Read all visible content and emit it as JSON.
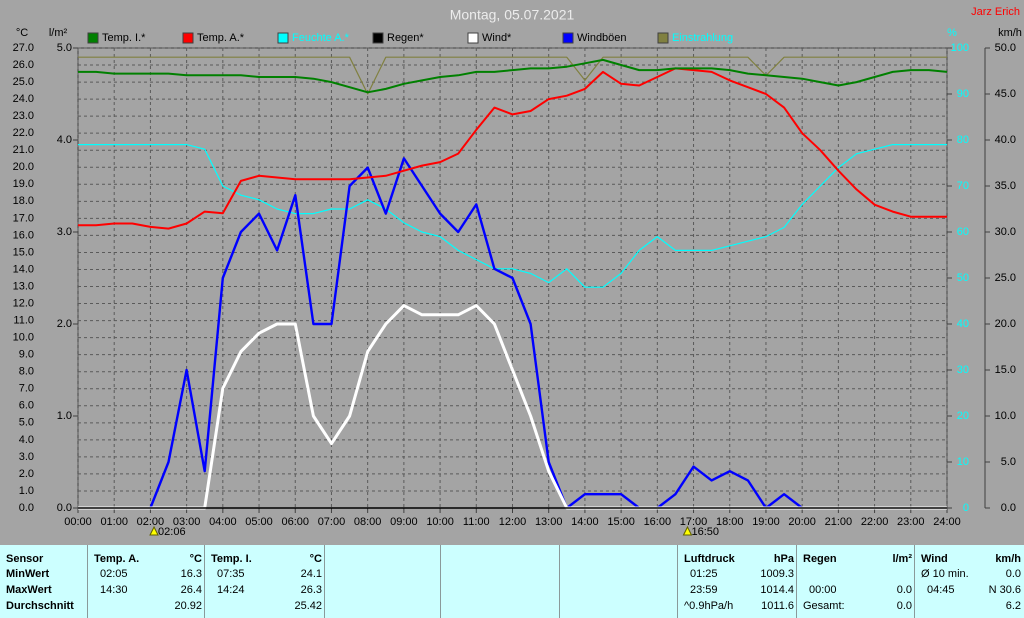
{
  "chart_data": {
    "type": "line",
    "title": "Montag, 05.07.2021",
    "corner_text": "Jarz Erich",
    "ylabel": "°C",
    "y2label": "l/m²",
    "y3label": "%",
    "y4label": "km/h",
    "x": [
      0,
      0.5,
      1,
      1.5,
      2,
      2.5,
      3,
      3.5,
      4,
      4.5,
      5,
      5.5,
      6,
      6.5,
      7,
      7.5,
      8,
      8.5,
      9,
      9.5,
      10,
      10.5,
      11,
      11.5,
      12,
      12.5,
      13,
      13.5,
      14,
      14.5,
      15,
      15.5,
      16,
      16.5,
      17,
      17.5,
      18,
      18.5,
      19,
      19.5,
      20,
      20.5,
      21,
      21.5,
      22,
      22.5,
      23,
      23.5,
      24
    ],
    "xlim": [
      0,
      24
    ],
    "xticks": [
      {
        "value": 0,
        "label": "00:00"
      },
      {
        "value": 1,
        "label": "01:00"
      },
      {
        "value": 2,
        "label": "02:00"
      },
      {
        "value": 3,
        "label": "03:00"
      },
      {
        "value": 4,
        "label": "04:00"
      },
      {
        "value": 5,
        "label": "05:00"
      },
      {
        "value": 6,
        "label": "06:00"
      },
      {
        "value": 7,
        "label": "07:00"
      },
      {
        "value": 8,
        "label": "08:00"
      },
      {
        "value": 9,
        "label": "09:00"
      },
      {
        "value": 10,
        "label": "10:00"
      },
      {
        "value": 11,
        "label": "11:00"
      },
      {
        "value": 12,
        "label": "12:00"
      },
      {
        "value": 13,
        "label": "13:00"
      },
      {
        "value": 14,
        "label": "14:00"
      },
      {
        "value": 15,
        "label": "15:00"
      },
      {
        "value": 16,
        "label": "16:00"
      },
      {
        "value": 17,
        "label": "17:00"
      },
      {
        "value": 18,
        "label": "18:00"
      },
      {
        "value": 19,
        "label": "19:00"
      },
      {
        "value": 20,
        "label": "20:00"
      },
      {
        "value": 21,
        "label": "21:00"
      },
      {
        "value": 22,
        "label": "22:00"
      },
      {
        "value": 23,
        "label": "23:00"
      },
      {
        "value": 24,
        "label": "24:00"
      }
    ],
    "ylim": [
      0,
      27
    ],
    "yticks": [
      {
        "value": 0,
        "label": "0.0"
      },
      {
        "value": 1,
        "label": "1.0"
      },
      {
        "value": 2,
        "label": "2.0"
      },
      {
        "value": 3,
        "label": "3.0"
      },
      {
        "value": 4,
        "label": "4.0"
      },
      {
        "value": 5,
        "label": "5.0"
      },
      {
        "value": 6,
        "label": "6.0"
      },
      {
        "value": 7,
        "label": "7.0"
      },
      {
        "value": 8,
        "label": "8.0"
      },
      {
        "value": 9,
        "label": "9.0"
      },
      {
        "value": 10,
        "label": "10.0"
      },
      {
        "value": 11,
        "label": "11.0"
      },
      {
        "value": 12,
        "label": "12.0"
      },
      {
        "value": 13,
        "label": "13.0"
      },
      {
        "value": 14,
        "label": "14.0"
      },
      {
        "value": 15,
        "label": "15.0"
      },
      {
        "value": 16,
        "label": "16.0"
      },
      {
        "value": 17,
        "label": "17.0"
      },
      {
        "value": 18,
        "label": "18.0"
      },
      {
        "value": 19,
        "label": "19.0"
      },
      {
        "value": 20,
        "label": "20.0"
      },
      {
        "value": 21,
        "label": "21.0"
      },
      {
        "value": 22,
        "label": "22.0"
      },
      {
        "value": 23,
        "label": "23.0"
      },
      {
        "value": 24,
        "label": "24.0"
      },
      {
        "value": 25,
        "label": "25.0"
      },
      {
        "value": 26,
        "label": "26.0"
      },
      {
        "value": 27,
        "label": "27.0"
      }
    ],
    "y2lim": [
      0,
      5
    ],
    "y2ticks": [
      {
        "value": 0,
        "label": "0.0"
      },
      {
        "value": 1,
        "label": "1.0"
      },
      {
        "value": 2,
        "label": "2.0"
      },
      {
        "value": 3,
        "label": "3.0"
      },
      {
        "value": 4,
        "label": "4.0"
      },
      {
        "value": 5,
        "label": "5.0"
      }
    ],
    "y3lim": [
      0,
      100
    ],
    "y3ticks": [
      0,
      10,
      20,
      30,
      40,
      50,
      60,
      70,
      80,
      90,
      100
    ],
    "y4lim": [
      0,
      50
    ],
    "y4ticks": [
      {
        "value": 0,
        "label": "0.0"
      },
      {
        "value": 5,
        "label": "5.0"
      },
      {
        "value": 10,
        "label": "10.0"
      },
      {
        "value": 15,
        "label": "15.0"
      },
      {
        "value": 20,
        "label": "20.0"
      },
      {
        "value": 25,
        "label": "25.0"
      },
      {
        "value": 30,
        "label": "30.0"
      },
      {
        "value": 35,
        "label": "35.0"
      },
      {
        "value": 40,
        "label": "40.0"
      },
      {
        "value": 45,
        "label": "45.0"
      },
      {
        "value": 50,
        "label": "50.0"
      }
    ],
    "grid": true,
    "series": [
      {
        "name": "Temp. I.*",
        "color": "#008000",
        "axis": "y",
        "values": [
          25.6,
          25.6,
          25.5,
          25.5,
          25.5,
          25.5,
          25.4,
          25.4,
          25.4,
          25.4,
          25.3,
          25.3,
          25.3,
          25.2,
          25.0,
          24.7,
          24.4,
          24.6,
          24.9,
          25.1,
          25.3,
          25.4,
          25.6,
          25.6,
          25.7,
          25.8,
          25.8,
          25.9,
          26.1,
          26.3,
          26.0,
          25.7,
          25.7,
          25.8,
          25.8,
          25.8,
          25.7,
          25.5,
          25.4,
          25.3,
          25.2,
          25.0,
          24.8,
          25.0,
          25.3,
          25.6,
          25.7,
          25.7,
          25.6
        ]
      },
      {
        "name": "Temp. A.*",
        "color": "#ff0000",
        "axis": "y",
        "values": [
          16.6,
          16.6,
          16.7,
          16.7,
          16.5,
          16.4,
          16.7,
          17.4,
          17.3,
          19.2,
          19.5,
          19.4,
          19.3,
          19.3,
          19.3,
          19.3,
          19.4,
          19.5,
          19.8,
          20.1,
          20.3,
          20.8,
          22.2,
          23.5,
          23.1,
          23.3,
          24.0,
          24.2,
          24.6,
          25.6,
          24.9,
          24.8,
          25.3,
          25.8,
          25.7,
          25.6,
          25.1,
          24.7,
          24.3,
          23.5,
          22.0,
          21.0,
          19.8,
          18.7,
          17.8,
          17.4,
          17.1,
          17.1,
          17.1
        ]
      },
      {
        "name": "Feuchte A.*",
        "color": "#00ffff",
        "axis": "y3",
        "values": [
          79,
          79,
          79,
          79,
          79,
          79,
          79,
          78,
          70,
          68,
          67,
          65,
          64,
          64,
          65,
          65,
          67,
          65,
          62,
          60,
          59,
          56,
          54,
          52,
          52,
          51,
          49,
          52,
          48,
          48,
          51,
          56,
          59,
          56,
          56,
          56,
          57,
          58,
          59,
          61,
          66,
          70,
          74,
          77,
          78,
          79,
          79,
          79,
          79
        ]
      },
      {
        "name": "Regen*",
        "color": "#000000",
        "axis": "y2",
        "values": [
          0,
          0,
          0,
          0,
          0,
          0,
          0,
          0,
          0,
          0,
          0,
          0,
          0,
          0,
          0,
          0,
          0,
          0,
          0,
          0,
          0,
          0,
          0,
          0,
          0,
          0,
          0,
          0,
          0,
          0,
          0,
          0,
          0,
          0,
          0,
          0,
          0,
          0,
          0,
          0,
          0,
          0,
          0,
          0,
          0,
          0,
          0,
          0,
          0
        ]
      },
      {
        "name": "Wind*",
        "color": "#ffffff",
        "axis": "y4",
        "values": [
          0,
          0,
          0,
          0,
          0,
          0,
          0,
          0,
          13,
          17,
          19,
          20,
          20,
          10,
          7,
          10,
          17,
          20,
          22,
          21,
          21,
          21,
          22,
          20,
          15,
          10,
          4,
          0,
          0,
          0,
          0,
          0,
          0,
          0,
          0,
          0,
          0,
          0,
          0,
          0,
          0,
          0,
          0,
          0,
          0,
          0,
          0,
          0,
          0
        ]
      },
      {
        "name": "Windböen",
        "color": "#0000ff",
        "axis": "y4",
        "values": [
          0,
          0,
          0,
          0,
          0,
          5,
          15,
          4,
          25,
          30,
          32,
          28,
          34,
          20,
          20,
          35,
          37,
          32,
          38,
          35,
          32,
          30,
          33,
          26,
          25,
          20,
          5,
          0,
          1.5,
          1.5,
          1.5,
          0,
          0,
          1.5,
          4.5,
          3,
          4,
          3,
          0,
          1.5,
          0,
          0,
          0,
          0,
          0,
          0,
          0,
          0,
          0
        ]
      },
      {
        "name": "Einstrahlung",
        "color": "#808040",
        "axis": "y3",
        "values": [
          98,
          98,
          98,
          98,
          98,
          98,
          98,
          98,
          98,
          98,
          98,
          98,
          98,
          98,
          98,
          98,
          90,
          98,
          98,
          98,
          98,
          98,
          98,
          98,
          98,
          98,
          98,
          98,
          93,
          98,
          98,
          98,
          98,
          98,
          98,
          98,
          98,
          98,
          94,
          98,
          98,
          98,
          98,
          98,
          98,
          98,
          98,
          98,
          98
        ]
      }
    ],
    "annotations": [
      {
        "text": "02:06",
        "x": 2.1
      },
      {
        "text": "16:50",
        "x": 16.833
      }
    ]
  },
  "table": {
    "sensor": {
      "title": "Sensor",
      "rows": [
        "MinWert",
        "MaxWert",
        "Durchschnitt"
      ]
    },
    "columns": [
      {
        "title": "Temp. A.",
        "unit": "°C",
        "cells": [
          {
            "time": "02:05",
            "value": "16.3"
          },
          {
            "time": "14:30",
            "value": "26.4"
          },
          {
            "value": "20.92"
          }
        ]
      },
      {
        "title": "Temp. I.",
        "unit": "°C",
        "cells": [
          {
            "time": "07:35",
            "value": "24.1"
          },
          {
            "time": "14:24",
            "value": "26.3"
          },
          {
            "value": "25.42"
          }
        ]
      },
      {
        "title": "Luftdruck",
        "unit": "hPa",
        "cells": [
          {
            "time": "01:25",
            "value": "1009.3"
          },
          {
            "time": "23:59",
            "value": "1014.4"
          },
          {
            "time": "^0.9hPa/h",
            "value": "1011.6"
          }
        ]
      },
      {
        "title": "Regen",
        "unit": "l/m²",
        "cells": [
          null,
          {
            "time": "00:00",
            "value": "0.0"
          },
          {
            "time": "Gesamt:",
            "value": "0.0"
          }
        ]
      },
      {
        "title": "Wind",
        "unit": "km/h",
        "cells": [
          {
            "time": "Ø 10 min.",
            "value": "0.0"
          },
          {
            "time": "04:45",
            "value": "N 30.6"
          },
          {
            "value": "6.2"
          }
        ]
      }
    ]
  }
}
